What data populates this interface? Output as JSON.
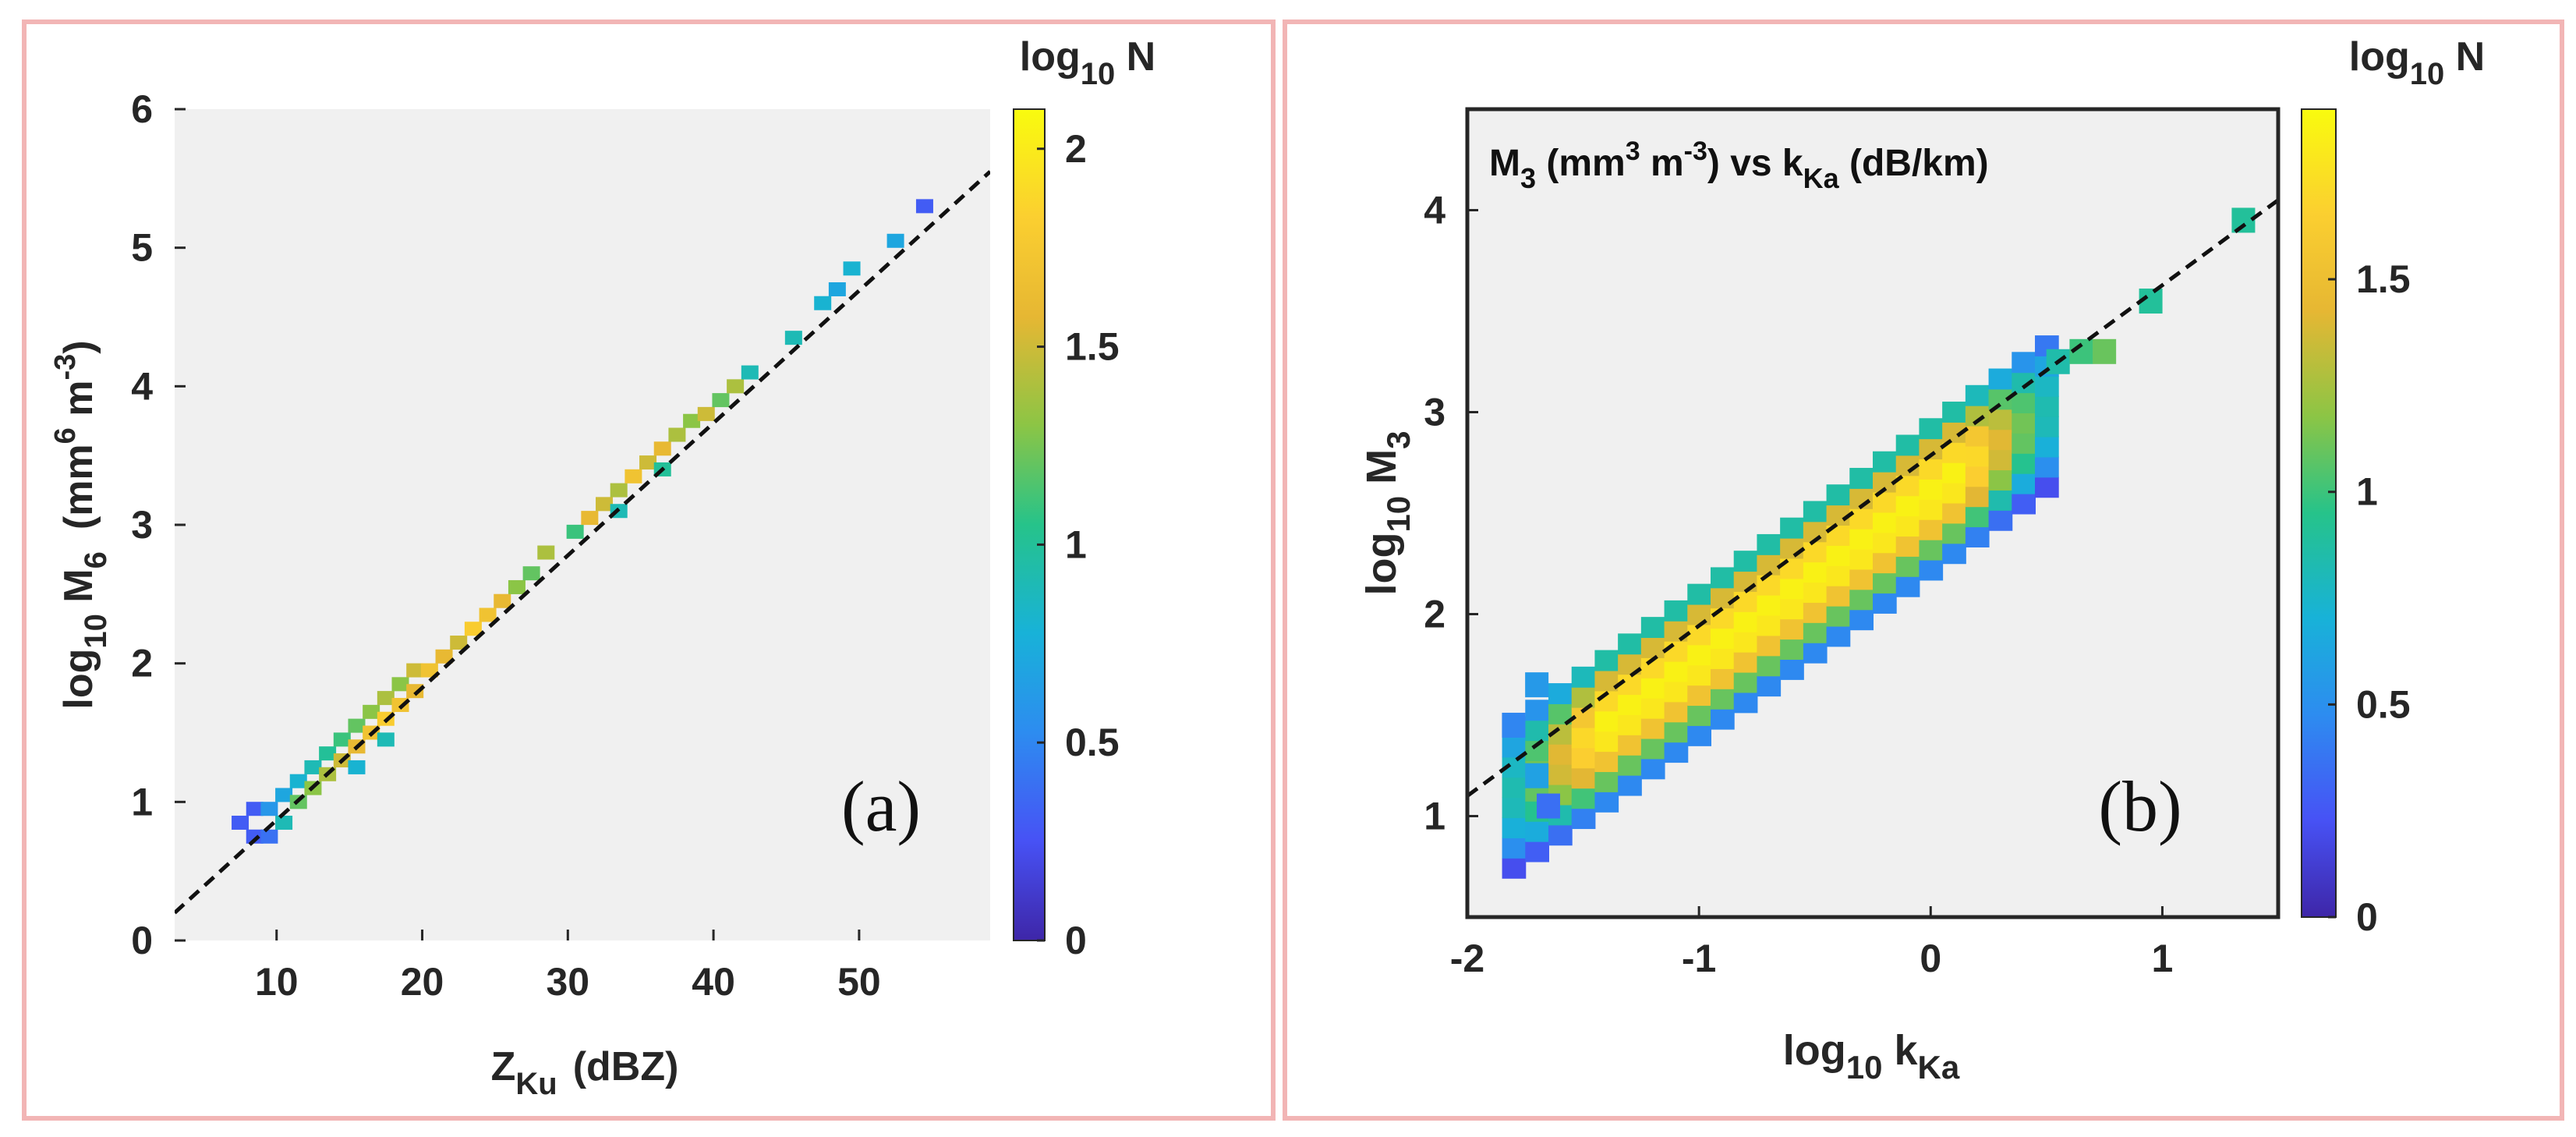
{
  "chart_data": [
    {
      "type": "heatmap",
      "panel_label": "(a)",
      "title": "",
      "xlabel": {
        "main": "Z",
        "sub": "Ku",
        "tail": "(dBZ)"
      },
      "ylabel": {
        "pre": "log",
        "pre_sub": "10",
        "main": " M",
        "sub": "6",
        "tail": "(mm",
        "sup1": "6",
        "mid": " m",
        "sup2": "-3",
        "end": ")"
      },
      "xlim": [
        3,
        59
      ],
      "ylim": [
        0,
        6
      ],
      "xticks": [
        10,
        20,
        30,
        40,
        50
      ],
      "yticks": [
        0,
        1,
        2,
        3,
        4,
        5,
        6
      ],
      "grid": false,
      "colorbar": {
        "label_pre": "log",
        "label_sub": "10",
        "label_post": " N",
        "range": [
          0,
          2.1
        ],
        "ticks": [
          0,
          0.5,
          1,
          1.5,
          2
        ],
        "tick_labels": [
          "0",
          "0.5",
          "1",
          "1.5",
          "2"
        ]
      },
      "fit_line": {
        "style": "dashed",
        "x": [
          3,
          59
        ],
        "y": [
          0.2,
          5.55
        ]
      },
      "cells": [
        {
          "x": 7.5,
          "y": 0.85,
          "v": 0.3
        },
        {
          "x": 8.5,
          "y": 0.75,
          "v": 0.3
        },
        {
          "x": 8.5,
          "y": 0.95,
          "v": 0.3
        },
        {
          "x": 9.5,
          "y": 0.75,
          "v": 0.4
        },
        {
          "x": 9.5,
          "y": 0.95,
          "v": 0.6
        },
        {
          "x": 10.5,
          "y": 0.85,
          "v": 0.9
        },
        {
          "x": 10.5,
          "y": 1.05,
          "v": 0.7
        },
        {
          "x": 11.5,
          "y": 1.0,
          "v": 1.2
        },
        {
          "x": 11.5,
          "y": 1.15,
          "v": 0.8
        },
        {
          "x": 12.5,
          "y": 1.1,
          "v": 1.3
        },
        {
          "x": 12.5,
          "y": 1.25,
          "v": 0.9
        },
        {
          "x": 13.5,
          "y": 1.2,
          "v": 1.4
        },
        {
          "x": 13.5,
          "y": 1.35,
          "v": 1.0
        },
        {
          "x": 14.5,
          "y": 1.3,
          "v": 1.5
        },
        {
          "x": 14.5,
          "y": 1.45,
          "v": 1.1
        },
        {
          "x": 15.5,
          "y": 1.25,
          "v": 0.8
        },
        {
          "x": 15.5,
          "y": 1.4,
          "v": 1.6
        },
        {
          "x": 15.5,
          "y": 1.55,
          "v": 1.2
        },
        {
          "x": 16.5,
          "y": 1.5,
          "v": 1.7
        },
        {
          "x": 16.5,
          "y": 1.65,
          "v": 1.3
        },
        {
          "x": 17.5,
          "y": 1.45,
          "v": 0.9
        },
        {
          "x": 17.5,
          "y": 1.6,
          "v": 1.8
        },
        {
          "x": 17.5,
          "y": 1.75,
          "v": 1.4
        },
        {
          "x": 18.5,
          "y": 1.7,
          "v": 1.7
        },
        {
          "x": 18.5,
          "y": 1.85,
          "v": 1.3
        },
        {
          "x": 19.5,
          "y": 1.8,
          "v": 1.6
        },
        {
          "x": 19.5,
          "y": 1.95,
          "v": 1.5
        },
        {
          "x": 20.5,
          "y": 1.95,
          "v": 1.7
        },
        {
          "x": 21.5,
          "y": 2.05,
          "v": 1.6
        },
        {
          "x": 22.5,
          "y": 2.15,
          "v": 1.5
        },
        {
          "x": 23.5,
          "y": 2.25,
          "v": 1.8
        },
        {
          "x": 24.5,
          "y": 2.35,
          "v": 1.7
        },
        {
          "x": 25.5,
          "y": 2.45,
          "v": 1.6
        },
        {
          "x": 26.5,
          "y": 2.55,
          "v": 1.3
        },
        {
          "x": 27.5,
          "y": 2.65,
          "v": 1.2
        },
        {
          "x": 28.5,
          "y": 2.8,
          "v": 1.4
        },
        {
          "x": 30.5,
          "y": 2.95,
          "v": 1.1
        },
        {
          "x": 31.5,
          "y": 3.05,
          "v": 1.6
        },
        {
          "x": 32.5,
          "y": 3.15,
          "v": 1.5
        },
        {
          "x": 33.5,
          "y": 3.25,
          "v": 1.4
        },
        {
          "x": 33.5,
          "y": 3.1,
          "v": 0.9
        },
        {
          "x": 34.5,
          "y": 3.35,
          "v": 1.7
        },
        {
          "x": 35.5,
          "y": 3.45,
          "v": 1.5
        },
        {
          "x": 36.5,
          "y": 3.55,
          "v": 1.6
        },
        {
          "x": 36.5,
          "y": 3.4,
          "v": 1.0
        },
        {
          "x": 37.5,
          "y": 3.65,
          "v": 1.4
        },
        {
          "x": 38.5,
          "y": 3.75,
          "v": 1.3
        },
        {
          "x": 39.5,
          "y": 3.8,
          "v": 1.5
        },
        {
          "x": 40.5,
          "y": 3.9,
          "v": 1.2
        },
        {
          "x": 41.5,
          "y": 4.0,
          "v": 1.4
        },
        {
          "x": 42.5,
          "y": 4.1,
          "v": 0.9
        },
        {
          "x": 45.5,
          "y": 4.35,
          "v": 0.9
        },
        {
          "x": 47.5,
          "y": 4.6,
          "v": 0.8
        },
        {
          "x": 48.5,
          "y": 4.7,
          "v": 0.7
        },
        {
          "x": 49.5,
          "y": 4.85,
          "v": 0.8
        },
        {
          "x": 52.5,
          "y": 5.05,
          "v": 0.7
        },
        {
          "x": 54.5,
          "y": 5.3,
          "v": 0.3
        }
      ]
    },
    {
      "type": "heatmap",
      "panel_label": "(b)",
      "title": {
        "pre": "M",
        "pre_sub": "3",
        "mid1": " (mm",
        "sup1": "3",
        "mid2": " m",
        "sup2": "-3",
        "mid3": ") vs k",
        "sub2": "Ka",
        "end": " (dB/km)"
      },
      "xlabel": {
        "pre": "log",
        "pre_sub": "10",
        "main": " k",
        "sub": "Ka"
      },
      "ylabel": {
        "pre": "log",
        "pre_sub": "10",
        "main": " M",
        "sub": "3"
      },
      "xlim": [
        -2.0,
        1.5
      ],
      "ylim": [
        0.5,
        4.5
      ],
      "xticks": [
        -2,
        -1,
        0,
        1
      ],
      "yticks": [
        1,
        2,
        3,
        4
      ],
      "grid": false,
      "colorbar": {
        "label_pre": "log",
        "label_sub": "10",
        "label_post": " N",
        "range": [
          0,
          1.9
        ],
        "ticks": [
          0,
          0.5,
          1,
          1.5
        ],
        "tick_labels": [
          "0",
          "0.5",
          "1",
          "1.5"
        ]
      },
      "fit_line": {
        "style": "dashed",
        "x": [
          -2.0,
          1.5
        ],
        "y": [
          1.1,
          4.05
        ]
      },
      "band": {
        "x_range": [
          -1.8,
          0.5
        ],
        "slope": 0.82,
        "intercept": 2.6,
        "half_width": 0.38,
        "peak": 1.85
      },
      "cells": [
        {
          "x": -1.8,
          "y": 1.45,
          "v": 0.45
        },
        {
          "x": -1.7,
          "y": 1.2,
          "v": 0.6
        },
        {
          "x": -1.7,
          "y": 1.65,
          "v": 0.55
        },
        {
          "x": -1.65,
          "y": 1.05,
          "v": 0.35
        },
        {
          "x": 0.55,
          "y": 3.25,
          "v": 0.85
        },
        {
          "x": 0.65,
          "y": 3.3,
          "v": 1.0
        },
        {
          "x": 0.75,
          "y": 3.3,
          "v": 1.1
        },
        {
          "x": 0.95,
          "y": 3.55,
          "v": 0.9
        },
        {
          "x": 1.35,
          "y": 3.95,
          "v": 0.9
        }
      ]
    }
  ]
}
